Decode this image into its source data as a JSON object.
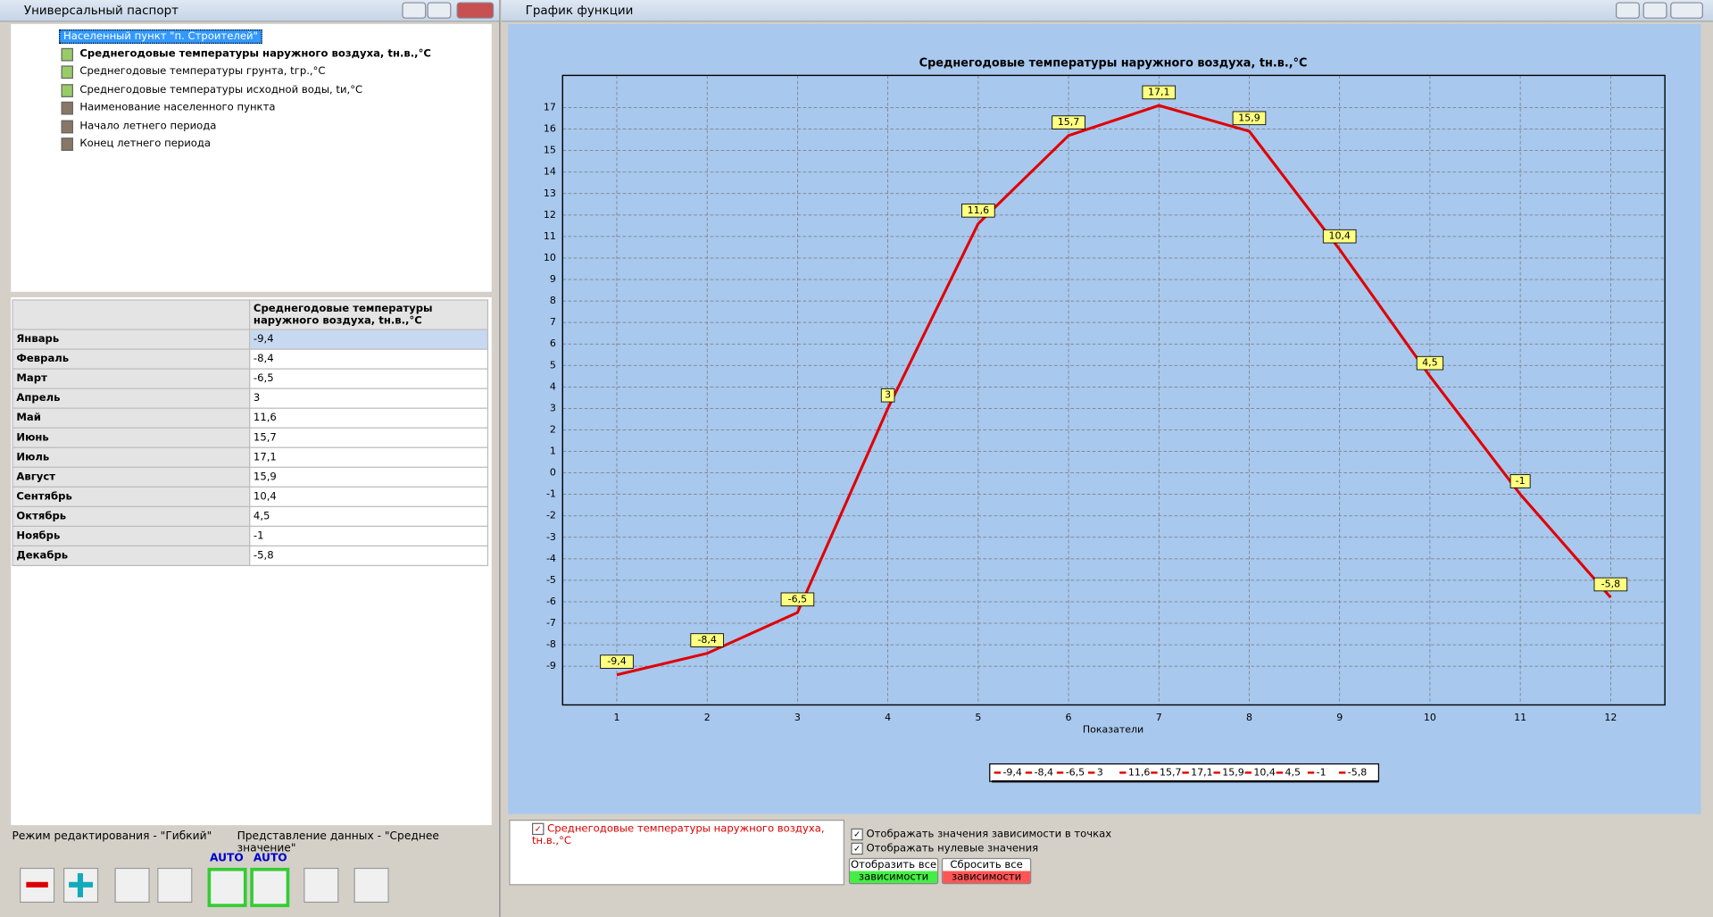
{
  "left_window": {
    "title": "Универсальный паспорт",
    "tree": {
      "root": "Населенный пункт \"п. Строителей\"",
      "items": [
        "Среднегодовые температуры наружного воздуха, tн.в.,°С",
        "Среднегодовые температуры грунта, tгр.,°С",
        "Среднегодовые температуры исходной воды, tи,°С",
        "Наименование населенного пункта",
        "Начало летнего периода",
        "Конец летнего периода"
      ]
    },
    "table": {
      "header": "Среднегодовые температуры наружного воздуха, tн.в.,°С",
      "rows": [
        [
          "Январь",
          "-9,4"
        ],
        [
          "Февраль",
          "-8,4"
        ],
        [
          "Март",
          "-6,5"
        ],
        [
          "Апрель",
          "3"
        ],
        [
          "Май",
          "11,6"
        ],
        [
          "Июнь",
          "15,7"
        ],
        [
          "Июль",
          "17,1"
        ],
        [
          "Август",
          "15,9"
        ],
        [
          "Сентябрь",
          "10,4"
        ],
        [
          "Октябрь",
          "4,5"
        ],
        [
          "Ноябрь",
          "-1"
        ],
        [
          "Декабрь",
          "-5,8"
        ]
      ]
    },
    "status": {
      "mode": "Режим редактирования - \"Гибкий\"",
      "view": "Представление данных - \"Среднее значение\""
    },
    "toolbar": {
      "auto_labels": [
        "AUTO",
        "AUTO"
      ]
    }
  },
  "right_window": {
    "title": "График функции",
    "series_list": [
      "Среднегодовые температуры наружного воздуха, tн.в.,°С"
    ],
    "options": [
      "Отображать значения зависимости в точках",
      "Отображать нулевые значения"
    ],
    "buttons": [
      [
        "Отобразить все",
        "зависимости"
      ],
      [
        "Сбросить все",
        "зависимости"
      ]
    ]
  },
  "chart_data": {
    "type": "line",
    "title": "Среднегодовые температуры наружного воздуха, tн.в.,°С",
    "x_label": "Показатели",
    "x": [
      1,
      2,
      3,
      4,
      5,
      6,
      7,
      8,
      9,
      10,
      11,
      12
    ],
    "values": [
      -9.4,
      -8.4,
      -6.5,
      3,
      11.6,
      15.7,
      17.1,
      15.9,
      10.4,
      4.5,
      -1,
      -5.8
    ],
    "value_labels": [
      "-9,4",
      "-8,4",
      "-6,5",
      "3",
      "11,6",
      "15,7",
      "17,1",
      "15,9",
      "10,4",
      "4,5",
      "-1",
      "-5,8"
    ],
    "color": "#e00000",
    "xlim": [
      0.4,
      12.6
    ],
    "ylim": [
      -10.8,
      18.5
    ],
    "xticks": [
      1,
      2,
      3,
      4,
      5,
      6,
      7,
      8,
      9,
      10,
      11,
      12
    ],
    "yticks": [
      -9,
      -8,
      -7,
      -6,
      -5,
      -4,
      -3,
      -2,
      -1,
      0,
      1,
      2,
      3,
      4,
      5,
      6,
      7,
      8,
      9,
      10,
      11,
      12,
      13,
      14,
      15,
      16,
      17
    ],
    "grid": true
  }
}
